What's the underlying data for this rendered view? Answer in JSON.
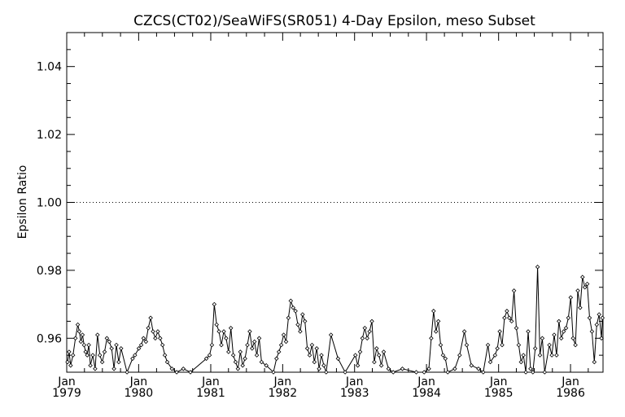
{
  "chart_data": {
    "type": "line",
    "title": "CZCS(CT02)/SeaWiFS(SR051) 4-Day Epsilon, meso Subset",
    "ylabel": "Epsilon Ratio",
    "xlabel": "",
    "ylim": [
      0.95,
      1.05
    ],
    "xlim": [
      "1979-01-01",
      "1986-06-15"
    ],
    "y_ticks": [
      {
        "value": 0.96,
        "label": "0.96"
      },
      {
        "value": 0.98,
        "label": "0.98"
      },
      {
        "value": 1.0,
        "label": "1.00"
      },
      {
        "value": 1.02,
        "label": "1.02"
      },
      {
        "value": 1.04,
        "label": "1.04"
      }
    ],
    "x_ticks": [
      {
        "date": "1979-01-01",
        "month": "Jan",
        "year": "1979"
      },
      {
        "date": "1980-01-01",
        "month": "Jan",
        "year": "1980"
      },
      {
        "date": "1981-01-01",
        "month": "Jan",
        "year": "1981"
      },
      {
        "date": "1982-01-01",
        "month": "Jan",
        "year": "1982"
      },
      {
        "date": "1983-01-01",
        "month": "Jan",
        "year": "1983"
      },
      {
        "date": "1984-01-01",
        "month": "Jan",
        "year": "1984"
      },
      {
        "date": "1985-01-01",
        "month": "Jan",
        "year": "1985"
      },
      {
        "date": "1986-01-01",
        "month": "Jan",
        "year": "1986"
      }
    ],
    "reference_line": {
      "y": 1.0,
      "style": "dotted"
    },
    "grid": false,
    "colors": {
      "line": "#000000",
      "marker": "#000000",
      "background": "#ffffff"
    },
    "series": [
      {
        "marker": "diamond",
        "points": [
          [
            "1979-01-05",
            0.953
          ],
          [
            "1979-01-13",
            0.956
          ],
          [
            "1979-01-21",
            0.952
          ],
          [
            "1979-02-02",
            0.955
          ],
          [
            "1979-02-14",
            0.96
          ],
          [
            "1979-02-26",
            0.964
          ],
          [
            "1979-03-06",
            0.962
          ],
          [
            "1979-03-14",
            0.959
          ],
          [
            "1979-03-22",
            0.961
          ],
          [
            "1979-03-30",
            0.958
          ],
          [
            "1979-04-07",
            0.956
          ],
          [
            "1979-04-15",
            0.955
          ],
          [
            "1979-04-23",
            0.958
          ],
          [
            "1979-05-01",
            0.952
          ],
          [
            "1979-05-13",
            0.955
          ],
          [
            "1979-05-25",
            0.951
          ],
          [
            "1979-06-06",
            0.961
          ],
          [
            "1979-06-18",
            0.955
          ],
          [
            "1979-06-30",
            0.953
          ],
          [
            "1979-07-12",
            0.956
          ],
          [
            "1979-07-24",
            0.96
          ],
          [
            "1979-08-05",
            0.959
          ],
          [
            "1979-08-17",
            0.957
          ],
          [
            "1979-08-29",
            0.951
          ],
          [
            "1979-09-10",
            0.958
          ],
          [
            "1979-09-22",
            0.953
          ],
          [
            "1979-10-04",
            0.957
          ],
          [
            "1979-11-03",
            0.95
          ],
          [
            "1979-12-01",
            0.954
          ],
          [
            "1979-12-13",
            0.955
          ],
          [
            "1980-01-02",
            0.957
          ],
          [
            "1980-01-14",
            0.958
          ],
          [
            "1980-01-26",
            0.96
          ],
          [
            "1980-02-07",
            0.959
          ],
          [
            "1980-02-19",
            0.963
          ],
          [
            "1980-03-02",
            0.966
          ],
          [
            "1980-03-14",
            0.962
          ],
          [
            "1980-03-26",
            0.96
          ],
          [
            "1980-04-07",
            0.962
          ],
          [
            "1980-04-19",
            0.96
          ],
          [
            "1980-05-01",
            0.958
          ],
          [
            "1980-05-13",
            0.955
          ],
          [
            "1980-05-25",
            0.953
          ],
          [
            "1980-06-18",
            0.951
          ],
          [
            "1980-07-12",
            0.95
          ],
          [
            "1980-08-15",
            0.951
          ],
          [
            "1980-09-20",
            0.95
          ],
          [
            "1980-12-10",
            0.954
          ],
          [
            "1980-12-26",
            0.955
          ],
          [
            "1981-01-07",
            0.958
          ],
          [
            "1981-01-19",
            0.97
          ],
          [
            "1981-01-31",
            0.964
          ],
          [
            "1981-02-12",
            0.962
          ],
          [
            "1981-02-24",
            0.958
          ],
          [
            "1981-03-08",
            0.962
          ],
          [
            "1981-03-20",
            0.96
          ],
          [
            "1981-04-01",
            0.956
          ],
          [
            "1981-04-13",
            0.963
          ],
          [
            "1981-04-25",
            0.955
          ],
          [
            "1981-05-07",
            0.953
          ],
          [
            "1981-05-19",
            0.951
          ],
          [
            "1981-05-31",
            0.956
          ],
          [
            "1981-06-12",
            0.952
          ],
          [
            "1981-06-24",
            0.954
          ],
          [
            "1981-07-06",
            0.958
          ],
          [
            "1981-07-18",
            0.962
          ],
          [
            "1981-07-30",
            0.957
          ],
          [
            "1981-08-11",
            0.959
          ],
          [
            "1981-08-23",
            0.955
          ],
          [
            "1981-09-04",
            0.96
          ],
          [
            "1981-09-16",
            0.953
          ],
          [
            "1981-10-10",
            0.952
          ],
          [
            "1981-11-15",
            0.95
          ],
          [
            "1981-12-01",
            0.954
          ],
          [
            "1981-12-13",
            0.956
          ],
          [
            "1981-12-25",
            0.958
          ],
          [
            "1982-01-06",
            0.961
          ],
          [
            "1982-01-18",
            0.959
          ],
          [
            "1982-01-30",
            0.966
          ],
          [
            "1982-02-11",
            0.971
          ],
          [
            "1982-02-23",
            0.969
          ],
          [
            "1982-03-07",
            0.968
          ],
          [
            "1982-03-19",
            0.964
          ],
          [
            "1982-03-31",
            0.962
          ],
          [
            "1982-04-12",
            0.967
          ],
          [
            "1982-04-24",
            0.965
          ],
          [
            "1982-05-06",
            0.957
          ],
          [
            "1982-05-18",
            0.955
          ],
          [
            "1982-05-30",
            0.958
          ],
          [
            "1982-06-11",
            0.953
          ],
          [
            "1982-06-23",
            0.957
          ],
          [
            "1982-07-05",
            0.951
          ],
          [
            "1982-07-17",
            0.955
          ],
          [
            "1982-07-29",
            0.952
          ],
          [
            "1982-08-10",
            0.95
          ],
          [
            "1982-09-03",
            0.961
          ],
          [
            "1982-10-09",
            0.954
          ],
          [
            "1982-11-14",
            0.95
          ],
          [
            "1983-01-05",
            0.955
          ],
          [
            "1983-01-17",
            0.952
          ],
          [
            "1983-01-29",
            0.956
          ],
          [
            "1983-02-10",
            0.96
          ],
          [
            "1983-02-22",
            0.963
          ],
          [
            "1983-03-06",
            0.96
          ],
          [
            "1983-03-18",
            0.962
          ],
          [
            "1983-03-30",
            0.965
          ],
          [
            "1983-04-11",
            0.953
          ],
          [
            "1983-04-23",
            0.957
          ],
          [
            "1983-05-05",
            0.955
          ],
          [
            "1983-05-17",
            0.952
          ],
          [
            "1983-05-29",
            0.956
          ],
          [
            "1983-06-22",
            0.951
          ],
          [
            "1983-07-16",
            0.95
          ],
          [
            "1983-09-01",
            0.951
          ],
          [
            "1983-11-10",
            0.95
          ],
          [
            "1983-12-20",
            0.95
          ],
          [
            "1984-01-13",
            0.951
          ],
          [
            "1984-01-25",
            0.96
          ],
          [
            "1984-02-06",
            0.968
          ],
          [
            "1984-02-18",
            0.962
          ],
          [
            "1984-03-01",
            0.965
          ],
          [
            "1984-03-13",
            0.958
          ],
          [
            "1984-03-25",
            0.955
          ],
          [
            "1984-04-06",
            0.954
          ],
          [
            "1984-04-18",
            0.95
          ],
          [
            "1984-05-24",
            0.951
          ],
          [
            "1984-06-17",
            0.955
          ],
          [
            "1984-07-11",
            0.962
          ],
          [
            "1984-07-23",
            0.958
          ],
          [
            "1984-08-16",
            0.952
          ],
          [
            "1984-09-21",
            0.951
          ],
          [
            "1984-10-15",
            0.95
          ],
          [
            "1984-11-08",
            0.958
          ],
          [
            "1984-11-20",
            0.953
          ],
          [
            "1984-12-14",
            0.955
          ],
          [
            "1984-12-26",
            0.957
          ],
          [
            "1985-01-07",
            0.962
          ],
          [
            "1985-01-19",
            0.958
          ],
          [
            "1985-01-31",
            0.966
          ],
          [
            "1985-02-12",
            0.968
          ],
          [
            "1985-02-24",
            0.966
          ],
          [
            "1985-03-08",
            0.965
          ],
          [
            "1985-03-20",
            0.974
          ],
          [
            "1985-04-01",
            0.963
          ],
          [
            "1985-04-13",
            0.958
          ],
          [
            "1985-04-25",
            0.953
          ],
          [
            "1985-05-07",
            0.955
          ],
          [
            "1985-05-19",
            0.95
          ],
          [
            "1985-05-31",
            0.962
          ],
          [
            "1985-06-12",
            0.951
          ],
          [
            "1985-06-24",
            0.95
          ],
          [
            "1985-07-06",
            0.957
          ],
          [
            "1985-07-18",
            0.981
          ],
          [
            "1985-07-30",
            0.955
          ],
          [
            "1985-08-11",
            0.96
          ],
          [
            "1985-08-23",
            0.95
          ],
          [
            "1985-09-16",
            0.958
          ],
          [
            "1985-09-28",
            0.955
          ],
          [
            "1985-10-10",
            0.961
          ],
          [
            "1985-10-22",
            0.955
          ],
          [
            "1985-11-03",
            0.965
          ],
          [
            "1985-11-15",
            0.96
          ],
          [
            "1985-11-27",
            0.962
          ],
          [
            "1985-12-09",
            0.963
          ],
          [
            "1985-12-21",
            0.966
          ],
          [
            "1986-01-02",
            0.972
          ],
          [
            "1986-01-14",
            0.96
          ],
          [
            "1986-01-26",
            0.958
          ],
          [
            "1986-02-07",
            0.974
          ],
          [
            "1986-02-19",
            0.969
          ],
          [
            "1986-03-03",
            0.978
          ],
          [
            "1986-03-15",
            0.975
          ],
          [
            "1986-03-27",
            0.976
          ],
          [
            "1986-04-08",
            0.966
          ],
          [
            "1986-04-20",
            0.962
          ],
          [
            "1986-05-02",
            0.953
          ],
          [
            "1986-05-14",
            0.964
          ],
          [
            "1986-05-26",
            0.967
          ],
          [
            "1986-06-07",
            0.96
          ],
          [
            "1986-06-12",
            0.966
          ]
        ]
      }
    ]
  }
}
